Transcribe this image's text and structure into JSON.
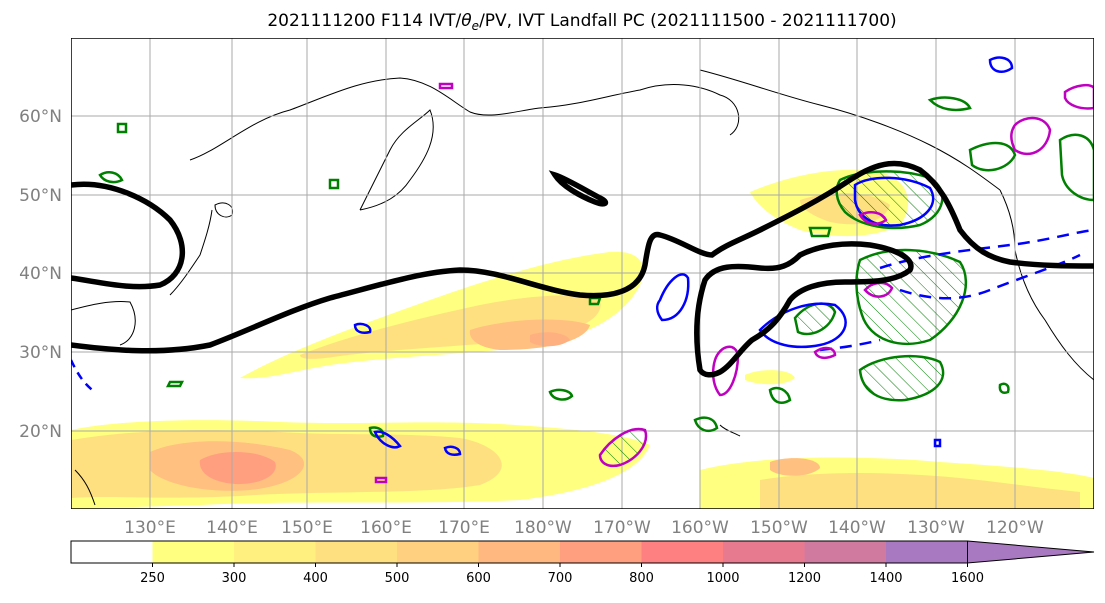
{
  "title": "2021111200 F114 IVT/θe/PV, IVT Landfall PC (2021111500 - 2021111700)",
  "title_parts": {
    "prefix": "2021111200 F114 IVT/",
    "theta": "θ",
    "theta_sub": "e",
    "suffix": "/PV, IVT Landfall PC (2021111500 - 2021111700)"
  },
  "lat_labels": [
    "60°N",
    "50°N",
    "40°N",
    "30°N",
    "20°N"
  ],
  "lon_labels": [
    "130°E",
    "140°E",
    "150°E",
    "160°E",
    "170°E",
    "180°W",
    "170°W",
    "160°W",
    "150°W",
    "140°W",
    "130°W",
    "120°W"
  ],
  "colorbar": {
    "ticks": [
      "250",
      "300",
      "400",
      "500",
      "600",
      "700",
      "800",
      "1000",
      "1200",
      "1400",
      "1600"
    ],
    "colors": [
      "#ffffff",
      "#ffff80",
      "#fff080",
      "#ffe080",
      "#ffd080",
      "#ffb880",
      "#ff9f80",
      "#ff8080",
      "#e87a90",
      "#d07aa0",
      "#a878c0"
    ]
  },
  "colors": {
    "ivt_fill_low": "#ffff80",
    "ivt_fill_mid": "#ffd080",
    "ivt_fill_high": "#ff9f80",
    "landfall_pc": "#000000",
    "pv_contour": "#008000",
    "theta_e_contour": "#0000ff",
    "magenta_contour": "#c000c0",
    "gridline": "#aaaaaa",
    "label_text": "#808080"
  }
}
